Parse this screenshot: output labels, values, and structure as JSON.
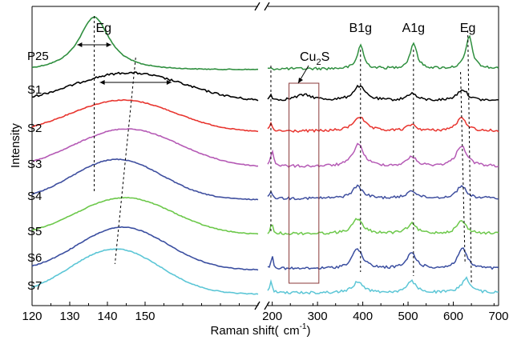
{
  "chart_data": {
    "type": "line",
    "xlabel_prefix": "Raman shift(",
    "xlabel_unit": "cm",
    "xlabel_exp": "-1",
    "xlabel_suffix": ")",
    "ylabel": "Intensity",
    "x_segments": [
      {
        "xlim": [
          120,
          180
        ],
        "ticks": [
          120,
          130,
          140,
          150
        ]
      },
      {
        "xlim": [
          190,
          700
        ],
        "ticks": [
          200,
          300,
          400,
          500,
          600,
          700
        ]
      }
    ],
    "peak_labels": [
      {
        "text": "Eg",
        "segment": 0,
        "x": 139
      },
      {
        "text": "B1g",
        "segment": 1,
        "x": 395
      },
      {
        "text": "A1g",
        "segment": 1,
        "x": 512
      },
      {
        "text": "Eg",
        "segment": 1,
        "x": 632
      }
    ],
    "annotation": {
      "text": "Cu",
      "sub": "2",
      "text2": "S"
    },
    "series": [
      {
        "name": "P25",
        "color": "#2f8f3f",
        "left": {
          "peak": 136.5,
          "height": 68,
          "width": 5,
          "shape": "lorentz"
        },
        "right": {
          "peaks": [
            [
              395,
              30,
              8
            ],
            [
              512,
              32,
              9
            ],
            [
              635,
              40,
              9
            ]
          ]
        }
      },
      {
        "name": "S1",
        "color": "#000000",
        "left": {
          "peak": 145.5,
          "height": 38,
          "width": 15,
          "shape": "gauss"
        },
        "right": {
          "peaks": [
            [
              197,
              8,
              3
            ],
            [
              270,
              7,
              25
            ],
            [
              392,
              18,
              16
            ],
            [
              508,
              9,
              12
            ],
            [
              620,
              14,
              14
            ]
          ]
        }
      },
      {
        "name": "S2",
        "color": "#e8352f",
        "left": {
          "peak": 144,
          "height": 42,
          "width": 14,
          "shape": "gauss"
        },
        "right": {
          "peaks": [
            [
              197,
              10,
              3
            ],
            [
              392,
              18,
              16
            ],
            [
              508,
              8,
              12
            ],
            [
              618,
              16,
              14
            ]
          ]
        }
      },
      {
        "name": "S3",
        "color": "#b55ab5",
        "left": {
          "peak": 145,
          "height": 50,
          "width": 14,
          "shape": "gauss"
        },
        "right": {
          "peaks": [
            [
              200,
              20,
              4
            ],
            [
              390,
              28,
              14
            ],
            [
              508,
              12,
              12
            ],
            [
              618,
              26,
              14
            ]
          ]
        }
      },
      {
        "name": "S4",
        "color": "#3f4f9f",
        "left": {
          "peak": 142.5,
          "height": 52,
          "width": 12,
          "shape": "gauss"
        },
        "right": {
          "peaks": [
            [
              198,
              10,
              3
            ],
            [
              388,
              15,
              14
            ],
            [
              508,
              10,
              12
            ],
            [
              618,
              16,
              12
            ]
          ]
        }
      },
      {
        "name": "S5",
        "color": "#6cc84a",
        "left": {
          "peak": 144.5,
          "height": 48,
          "width": 13,
          "shape": "gauss"
        },
        "right": {
          "peaks": [
            [
              199,
              12,
              3
            ],
            [
              388,
              18,
              14
            ],
            [
              508,
              12,
              12
            ],
            [
              618,
              16,
              12
            ]
          ]
        }
      },
      {
        "name": "S6",
        "color": "#3a4ea0",
        "left": {
          "peak": 144,
          "height": 55,
          "width": 12,
          "shape": "gauss"
        },
        "right": {
          "peaks": [
            [
              200,
              16,
              3
            ],
            [
              388,
              25,
              14
            ],
            [
              508,
              20,
              12
            ],
            [
              620,
              26,
              12
            ]
          ]
        }
      },
      {
        "name": "S7",
        "color": "#5cc6d6",
        "left": {
          "peak": 142,
          "height": 58,
          "width": 12,
          "shape": "gauss"
        },
        "right": {
          "peaks": [
            [
              198,
              14,
              3
            ],
            [
              390,
              14,
              14
            ],
            [
              508,
              14,
              12
            ],
            [
              628,
              18,
              12
            ]
          ]
        }
      }
    ]
  }
}
